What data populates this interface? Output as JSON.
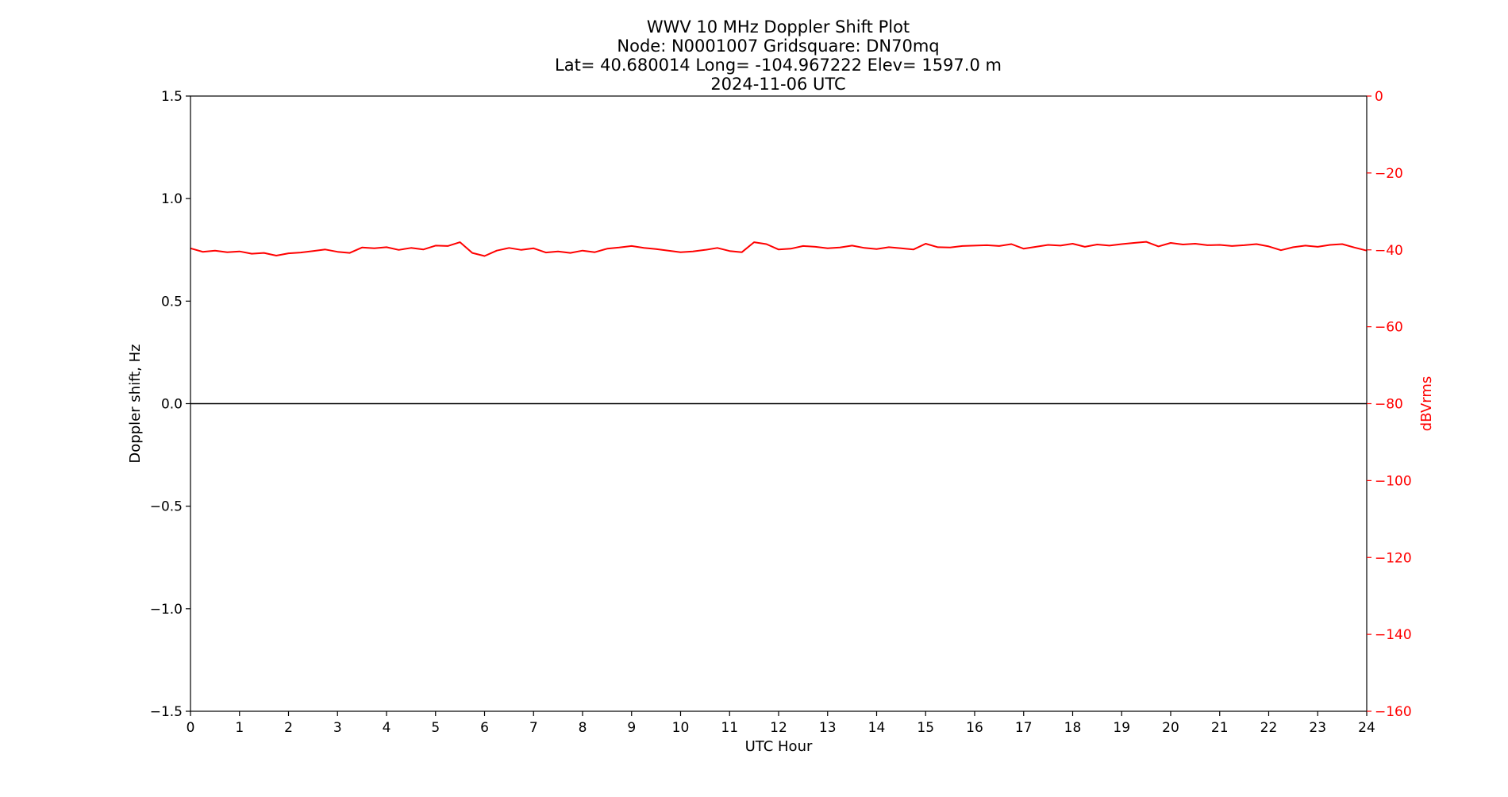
{
  "chart_data": {
    "type": "line",
    "title_lines": [
      "WWV 10 MHz Doppler Shift Plot",
      "Node:  N0001007     Gridsquare:  DN70mq",
      "Lat= 40.680014    Long= -104.967222    Elev= 1597.0 m",
      "2024-11-06  UTC"
    ],
    "xlabel": "UTC Hour",
    "ylabel": "Doppler shift, Hz",
    "y2label": "dBVrms",
    "xlim": [
      0,
      24
    ],
    "ylim": [
      -1.5,
      1.5
    ],
    "y2lim": [
      -160,
      0
    ],
    "xticks": [
      "0",
      "1",
      "2",
      "3",
      "4",
      "5",
      "6",
      "7",
      "8",
      "9",
      "10",
      "11",
      "12",
      "13",
      "14",
      "15",
      "16",
      "17",
      "18",
      "19",
      "20",
      "21",
      "22",
      "23",
      "24"
    ],
    "yticks": [
      "1.5",
      "1.0",
      "0.5",
      "0.0",
      "−0.5",
      "−1.0",
      "−1.5"
    ],
    "y2ticks": [
      "0",
      "−20",
      "−40",
      "−60",
      "−80",
      "−100",
      "−120",
      "−140",
      "−160"
    ],
    "grid": false,
    "colors": {
      "doppler": "#000000",
      "power": "#ff0000",
      "axis": "#000000",
      "right_axis": "#ff0000"
    },
    "series": [
      {
        "axis": "left",
        "x": [
          0,
          6,
          12,
          18,
          24
        ],
        "values": [
          0.0,
          0.0,
          0.0,
          0.0,
          0.0
        ]
      },
      {
        "axis": "right",
        "x": [
          0,
          0.25,
          0.5,
          0.75,
          1,
          1.25,
          1.5,
          1.75,
          2,
          2.25,
          2.5,
          2.75,
          3,
          3.25,
          3.5,
          3.75,
          4,
          4.25,
          4.5,
          4.75,
          5,
          5.25,
          5.5,
          5.75,
          6,
          6.25,
          6.5,
          6.75,
          7,
          7.25,
          7.5,
          7.75,
          8,
          8.25,
          8.5,
          8.75,
          9,
          9.25,
          9.5,
          9.75,
          10,
          10.25,
          10.5,
          10.75,
          11,
          11.25,
          11.5,
          11.75,
          12,
          12.25,
          12.5,
          12.75,
          13,
          13.25,
          13.5,
          13.75,
          14,
          14.25,
          14.5,
          14.75,
          15,
          15.25,
          15.5,
          15.75,
          16,
          16.25,
          16.5,
          16.75,
          17,
          17.25,
          17.5,
          17.75,
          18,
          18.25,
          18.5,
          18.75,
          19,
          19.25,
          19.5,
          19.75,
          20,
          20.25,
          20.5,
          20.75,
          21,
          21.25,
          21.5,
          21.75,
          22,
          22.25,
          22.5,
          22.75,
          23,
          23.25,
          23.5,
          23.75,
          24
        ],
        "values": [
          -39.6,
          -40.5,
          -40.2,
          -40.6,
          -40.4,
          -41.0,
          -40.8,
          -41.5,
          -40.9,
          -40.7,
          -40.3,
          -39.9,
          -40.5,
          -40.8,
          -39.4,
          -39.6,
          -39.3,
          -40.0,
          -39.5,
          -39.9,
          -38.9,
          -39.0,
          -38.0,
          -40.8,
          -41.6,
          -40.2,
          -39.5,
          -40.0,
          -39.6,
          -40.7,
          -40.4,
          -40.8,
          -40.2,
          -40.6,
          -39.7,
          -39.4,
          -39.0,
          -39.5,
          -39.8,
          -40.2,
          -40.6,
          -40.4,
          -40.0,
          -39.5,
          -40.3,
          -40.6,
          -38.0,
          -38.5,
          -39.9,
          -39.7,
          -39.0,
          -39.2,
          -39.6,
          -39.4,
          -38.9,
          -39.5,
          -39.8,
          -39.3,
          -39.6,
          -39.9,
          -38.4,
          -39.3,
          -39.4,
          -39.0,
          -38.9,
          -38.8,
          -39.0,
          -38.5,
          -39.7,
          -39.2,
          -38.7,
          -38.9,
          -38.4,
          -39.2,
          -38.6,
          -38.9,
          -38.5,
          -38.2,
          -37.9,
          -39.1,
          -38.2,
          -38.6,
          -38.4,
          -38.8,
          -38.7,
          -39.0,
          -38.8,
          -38.5,
          -39.1,
          -40.1,
          -39.3,
          -38.9,
          -39.2,
          -38.7,
          -38.5,
          -39.4,
          -40.2
        ]
      }
    ]
  }
}
